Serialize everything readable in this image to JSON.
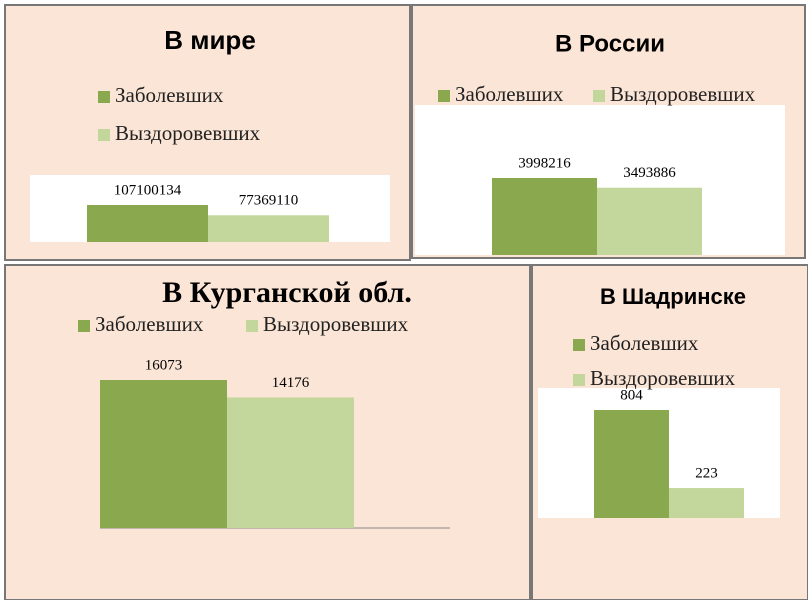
{
  "chart_data": [
    {
      "type": "bar",
      "title": "В мире",
      "series": [
        {
          "name": "Заболевших",
          "color": "#8aa84e",
          "values": [
            107100134
          ]
        },
        {
          "name": "Выздоровевших",
          "color": "#c3d69b",
          "values": [
            77369110
          ]
        }
      ]
    },
    {
      "type": "bar",
      "title": "В России",
      "series": [
        {
          "name": "Заболевших",
          "color": "#8aa84e",
          "values": [
            3998216
          ]
        },
        {
          "name": "Выздоровевших",
          "color": "#c3d69b",
          "values": [
            3493886
          ]
        }
      ]
    },
    {
      "type": "bar",
      "title": "В Курганской обл.",
      "series": [
        {
          "name": "Заболевших",
          "color": "#8aa84e",
          "values": [
            16073
          ]
        },
        {
          "name": "Выздоровевших",
          "color": "#c3d69b",
          "values": [
            14176
          ]
        }
      ]
    },
    {
      "type": "bar",
      "title": "В Шадринске",
      "series": [
        {
          "name": "Заболевших",
          "color": "#8aa84e",
          "values": [
            804
          ]
        },
        {
          "name": "Выздоровевших",
          "color": "#c3d69b",
          "values": [
            223
          ]
        }
      ]
    }
  ]
}
